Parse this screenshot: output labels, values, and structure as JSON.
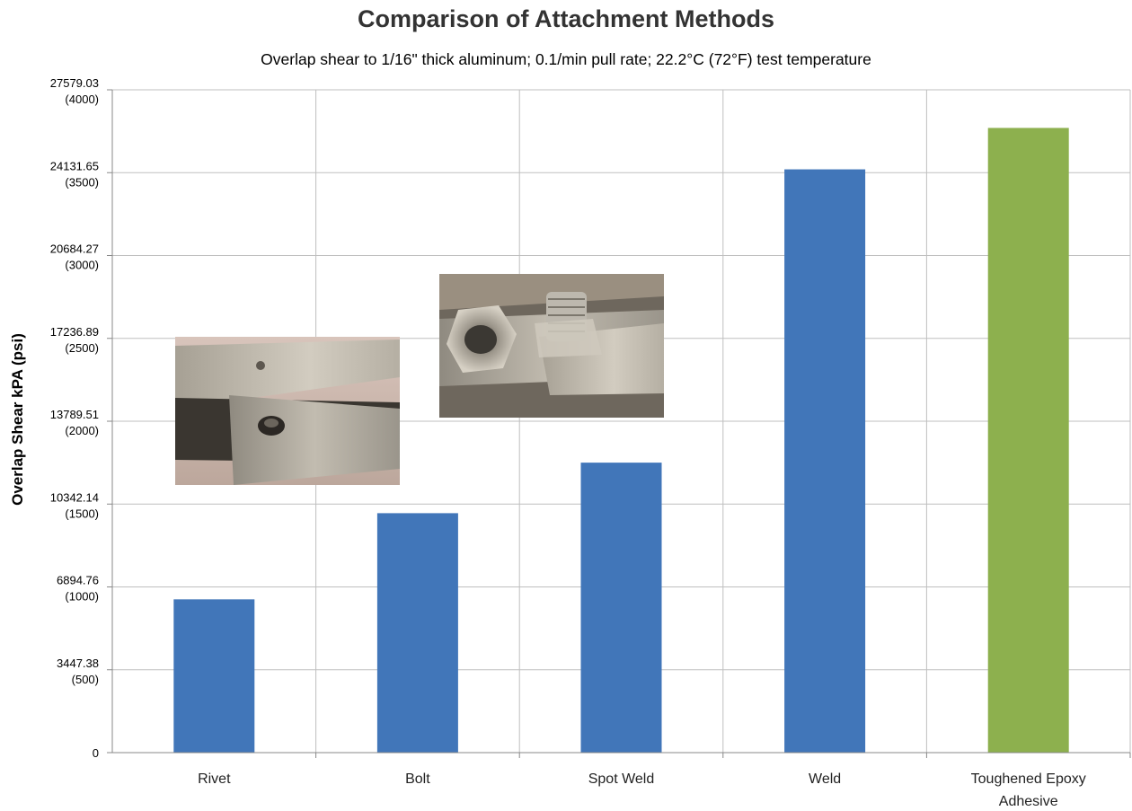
{
  "chart_data": {
    "type": "bar",
    "title": "Comparison of Attachment Methods",
    "subtitle": "Overlap shear to 1/16\" thick aluminum; 0.1/min pull rate; 22.2°C (72°F) test temperature",
    "xlabel": "",
    "ylabel": "Overlap Shear kPA (psi)",
    "ylim": [
      0,
      4000
    ],
    "y_unit": "psi",
    "yticks": [
      {
        "psi": 0,
        "kpa": "0",
        "psi_label": ""
      },
      {
        "psi": 500,
        "kpa": "3447.38",
        "psi_label": "(500)"
      },
      {
        "psi": 1000,
        "kpa": "6894.76",
        "psi_label": "(1000)"
      },
      {
        "psi": 1500,
        "kpa": "10342.14",
        "psi_label": "(1500)"
      },
      {
        "psi": 2000,
        "kpa": "13789.51",
        "psi_label": "(2000)"
      },
      {
        "psi": 2500,
        "kpa": "17236.89",
        "psi_label": "(2500)"
      },
      {
        "psi": 3000,
        "kpa": "20684.27",
        "psi_label": "(3000)"
      },
      {
        "psi": 3500,
        "kpa": "24131.65",
        "psi_label": "(3500)"
      },
      {
        "psi": 4000,
        "kpa": "27579.03",
        "psi_label": "(4000)"
      }
    ],
    "categories": [
      [
        "Rivet"
      ],
      [
        "Bolt"
      ],
      [
        "Spot Weld"
      ],
      [
        "Weld"
      ],
      [
        "Toughened Epoxy",
        "Adhesive"
      ]
    ],
    "values": [
      925,
      1445,
      1750,
      3520,
      3770
    ],
    "bar_colors": [
      "#4176b9",
      "#4176b9",
      "#4176b9",
      "#4176b9",
      "#8db04e"
    ],
    "grid": true,
    "inset_photos": [
      "rivet-joint-photo",
      "bolt-joint-photo"
    ]
  }
}
